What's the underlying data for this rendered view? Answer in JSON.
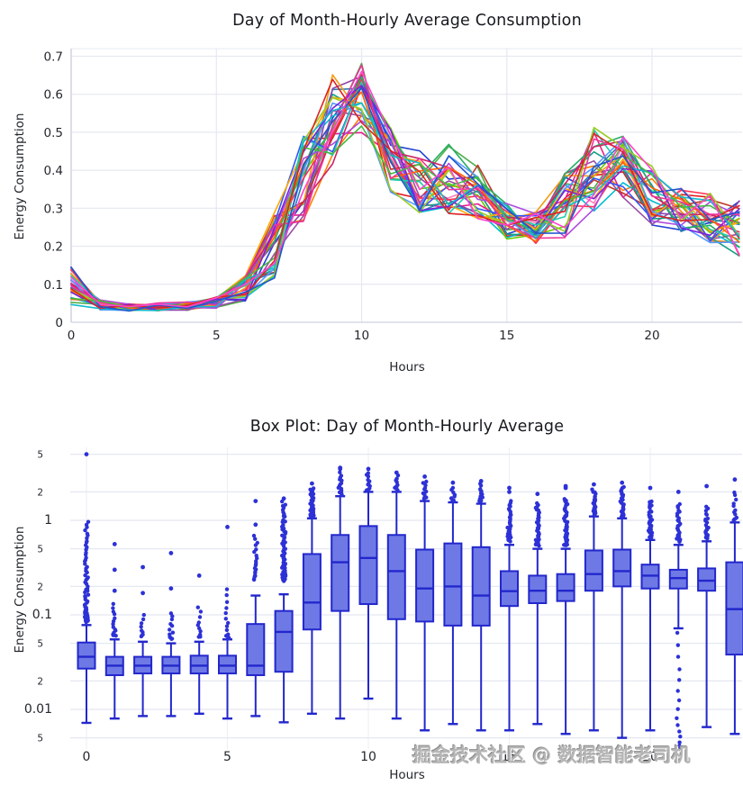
{
  "page": {
    "background": "#ffffff"
  },
  "watermark": {
    "text": "掘金技术社区 @ 数据智能老司机",
    "color": "#b5b5b5"
  },
  "theme": {
    "grid_color": "#e5e8f1",
    "axis_color": "#cdd2e0",
    "tick_text_color": "#24272e",
    "title_color": "#16191f",
    "box_fill": "#6e79e6",
    "box_line": "#2227cc",
    "outlier_color": "#2d31d6"
  },
  "chart_data": [
    {
      "type": "line",
      "title": "Day of Month-Hourly Average Consumption",
      "xlabel": "Hours",
      "ylabel": "Energy Consumption",
      "x": [
        0,
        1,
        2,
        3,
        4,
        5,
        6,
        7,
        8,
        9,
        10,
        11,
        12,
        13,
        14,
        15,
        16,
        17,
        18,
        19,
        20,
        21,
        22,
        23
      ],
      "x_ticks": [
        0,
        5,
        10,
        15,
        20
      ],
      "x_tick_labels": [
        "0",
        "5",
        "10",
        "15",
        "20"
      ],
      "y_ticks": [
        0,
        0.1,
        0.2,
        0.3,
        0.4,
        0.5,
        0.6,
        0.7
      ],
      "y_tick_labels": [
        "0",
        "0.1",
        "0.2",
        "0.3",
        "0.4",
        "0.5",
        "0.6",
        "0.7"
      ],
      "xlim": [
        0,
        23.1
      ],
      "ylim": [
        0,
        0.72
      ],
      "grid": true,
      "legend": "none",
      "n_series": 31,
      "series_label_prefix": "Day",
      "mean": [
        0.075,
        0.042,
        0.038,
        0.038,
        0.04,
        0.048,
        0.08,
        0.18,
        0.36,
        0.53,
        0.57,
        0.42,
        0.34,
        0.35,
        0.33,
        0.26,
        0.24,
        0.28,
        0.37,
        0.4,
        0.31,
        0.28,
        0.26,
        0.23
      ],
      "band_low": [
        0.04,
        0.03,
        0.028,
        0.028,
        0.03,
        0.034,
        0.05,
        0.1,
        0.25,
        0.4,
        0.48,
        0.33,
        0.27,
        0.27,
        0.26,
        0.21,
        0.19,
        0.21,
        0.26,
        0.3,
        0.24,
        0.22,
        0.2,
        0.16
      ],
      "band_high": [
        0.15,
        0.06,
        0.05,
        0.052,
        0.055,
        0.068,
        0.13,
        0.3,
        0.5,
        0.665,
        0.69,
        0.52,
        0.46,
        0.48,
        0.43,
        0.32,
        0.3,
        0.4,
        0.53,
        0.5,
        0.42,
        0.37,
        0.35,
        0.33
      ],
      "palette": [
        "#e41a1c",
        "#4daf4a",
        "#2040cf",
        "#ff7f00",
        "#984ea3",
        "#f781bf",
        "#00bcd4",
        "#66cc00",
        "#e91e8c",
        "#16a085",
        "#c0392b",
        "#2980b9",
        "#8e44ad",
        "#f39c12",
        "#27ae60",
        "#ff3355",
        "#3355ff",
        "#ad4ae0",
        "#ffaa00",
        "#22ccaa",
        "#cc2266",
        "#5599ff",
        "#99cc22",
        "#ff6600",
        "#7722dd",
        "#ee3399",
        "#11bbcc",
        "#44bb44",
        "#dd2222",
        "#2255cc",
        "#ff44cc"
      ]
    },
    {
      "type": "box",
      "title": "Box Plot: Day of Month-Hourly Average",
      "xlabel": "Hours",
      "ylabel": "Energy Consumption",
      "y_scale": "log",
      "x_ticks": [
        0,
        5,
        10,
        15,
        20
      ],
      "x_tick_labels": [
        "0",
        "5",
        "10",
        "15",
        "20"
      ],
      "y_tick_values": [
        5,
        2,
        1,
        0.5,
        0.2,
        0.1,
        0.05,
        0.02,
        0.01,
        0.005
      ],
      "y_tick_labels": [
        "5",
        "2",
        "1",
        "5",
        "2",
        "0.1",
        "5",
        "2",
        "0.01",
        "5"
      ],
      "y_tick_minor": [
        true,
        true,
        false,
        true,
        true,
        false,
        true,
        true,
        false,
        true
      ],
      "ylim": [
        0.0038,
        6.0
      ],
      "hours": [
        0,
        1,
        2,
        3,
        4,
        5,
        6,
        7,
        8,
        9,
        10,
        11,
        12,
        13,
        14,
        15,
        16,
        17,
        18,
        19,
        20,
        21,
        22,
        23
      ],
      "boxes": [
        {
          "hour": 0,
          "lo": 0.0072,
          "q1": 0.027,
          "med": 0.036,
          "q3": 0.051,
          "hi": 0.078,
          "out_hi": [
            0.085,
            0.95,
            60
          ],
          "extremes": [
            5.0
          ]
        },
        {
          "hour": 1,
          "lo": 0.008,
          "q1": 0.023,
          "med": 0.029,
          "q3": 0.036,
          "hi": 0.055,
          "out_hi": [
            0.06,
            0.13,
            14
          ],
          "extremes": [
            0.18,
            0.3,
            0.56
          ]
        },
        {
          "hour": 2,
          "lo": 0.0085,
          "q1": 0.024,
          "med": 0.029,
          "q3": 0.036,
          "hi": 0.052,
          "out_hi": [
            0.058,
            0.1,
            9
          ],
          "extremes": [
            0.17,
            0.32
          ]
        },
        {
          "hour": 3,
          "lo": 0.0085,
          "q1": 0.024,
          "med": 0.029,
          "q3": 0.036,
          "hi": 0.05,
          "out_hi": [
            0.055,
            0.105,
            12
          ],
          "extremes": [
            0.19,
            0.45
          ]
        },
        {
          "hour": 4,
          "lo": 0.009,
          "q1": 0.024,
          "med": 0.029,
          "q3": 0.037,
          "hi": 0.052,
          "out_hi": [
            0.058,
            0.12,
            10
          ],
          "extremes": [
            0.26
          ]
        },
        {
          "hour": 5,
          "lo": 0.008,
          "q1": 0.024,
          "med": 0.029,
          "q3": 0.037,
          "hi": 0.055,
          "out_hi": [
            0.055,
            0.19,
            13
          ],
          "extremes": [
            0.85
          ]
        },
        {
          "hour": 6,
          "lo": 0.0085,
          "q1": 0.023,
          "med": 0.029,
          "q3": 0.08,
          "hi": 0.16,
          "out_hi": [
            0.24,
            0.7,
            20
          ],
          "extremes": [
            0.9,
            1.6
          ]
        },
        {
          "hour": 7,
          "lo": 0.0073,
          "q1": 0.025,
          "med": 0.066,
          "q3": 0.11,
          "hi": 0.165,
          "out_hi": [
            0.23,
            1.55,
            65
          ],
          "extremes": [
            1.7
          ]
        },
        {
          "hour": 8,
          "lo": 0.009,
          "q1": 0.07,
          "med": 0.135,
          "q3": 0.44,
          "hi": 1.05,
          "out_hi": [
            1.1,
            2.2,
            40
          ],
          "extremes": [
            2.45
          ]
        },
        {
          "hour": 9,
          "lo": 0.008,
          "q1": 0.11,
          "med": 0.36,
          "q3": 0.7,
          "hi": 1.8,
          "out_hi": [
            1.9,
            3.2,
            16
          ],
          "extremes": [
            3.5,
            3.6
          ]
        },
        {
          "hour": 10,
          "lo": 0.013,
          "q1": 0.13,
          "med": 0.4,
          "q3": 0.87,
          "hi": 2.0,
          "out_hi": [
            2.1,
            3.2,
            12
          ],
          "extremes": [
            3.5
          ]
        },
        {
          "hour": 11,
          "lo": 0.008,
          "q1": 0.09,
          "med": 0.29,
          "q3": 0.7,
          "hi": 2.0,
          "out_hi": [
            2.1,
            3.0,
            10
          ],
          "extremes": [
            3.2
          ]
        },
        {
          "hour": 12,
          "lo": 0.006,
          "q1": 0.085,
          "med": 0.19,
          "q3": 0.49,
          "hi": 1.6,
          "out_hi": [
            1.7,
            2.6,
            12
          ],
          "extremes": [
            2.9
          ]
        },
        {
          "hour": 13,
          "lo": 0.007,
          "q1": 0.077,
          "med": 0.2,
          "q3": 0.57,
          "hi": 1.55,
          "out_hi": [
            1.6,
            2.2,
            9
          ],
          "extremes": [
            2.5
          ]
        },
        {
          "hour": 14,
          "lo": 0.006,
          "q1": 0.077,
          "med": 0.16,
          "q3": 0.52,
          "hi": 1.5,
          "out_hi": [
            1.6,
            2.4,
            14
          ],
          "extremes": [
            2.6
          ]
        },
        {
          "hour": 15,
          "lo": 0.006,
          "q1": 0.124,
          "med": 0.178,
          "q3": 0.29,
          "hi": 0.55,
          "out_hi": [
            0.6,
            1.6,
            35
          ],
          "extremes": [
            2.0,
            2.2
          ]
        },
        {
          "hour": 16,
          "lo": 0.007,
          "q1": 0.133,
          "med": 0.18,
          "q3": 0.26,
          "hi": 0.5,
          "out_hi": [
            0.55,
            1.5,
            45
          ],
          "extremes": [
            1.9
          ]
        },
        {
          "hour": 17,
          "lo": 0.0055,
          "q1": 0.14,
          "med": 0.18,
          "q3": 0.27,
          "hi": 0.5,
          "out_hi": [
            0.55,
            1.7,
            50
          ],
          "extremes": [
            2.2,
            2.3
          ]
        },
        {
          "hour": 18,
          "lo": 0.006,
          "q1": 0.18,
          "med": 0.27,
          "q3": 0.48,
          "hi": 1.1,
          "out_hi": [
            1.15,
            2.1,
            28
          ],
          "extremes": [
            2.4
          ]
        },
        {
          "hour": 19,
          "lo": 0.005,
          "q1": 0.2,
          "med": 0.29,
          "q3": 0.49,
          "hi": 1.05,
          "out_hi": [
            1.1,
            2.3,
            32
          ],
          "extremes": [
            2.5
          ]
        },
        {
          "hour": 20,
          "lo": 0.006,
          "q1": 0.19,
          "med": 0.26,
          "q3": 0.34,
          "hi": 0.62,
          "out_hi": [
            0.65,
            1.6,
            38
          ],
          "extremes": [
            2.2
          ]
        },
        {
          "hour": 21,
          "lo": 0.072,
          "q1": 0.19,
          "med": 0.245,
          "q3": 0.3,
          "hi": 0.55,
          "out_hi": [
            0.6,
            1.5,
            28
          ],
          "out_lo": [
            0.004,
            0.065,
            15
          ],
          "extremes": [
            2.0
          ]
        },
        {
          "hour": 22,
          "lo": 0.0065,
          "q1": 0.18,
          "med": 0.23,
          "q3": 0.31,
          "hi": 0.6,
          "out_hi": [
            0.65,
            1.4,
            22
          ],
          "extremes": [
            2.3
          ]
        },
        {
          "hour": 23,
          "lo": 0.0055,
          "q1": 0.038,
          "med": 0.115,
          "q3": 0.36,
          "hi": 0.95,
          "out_hi": [
            1.0,
            2.0,
            12
          ],
          "extremes": [
            2.7
          ]
        }
      ]
    }
  ]
}
